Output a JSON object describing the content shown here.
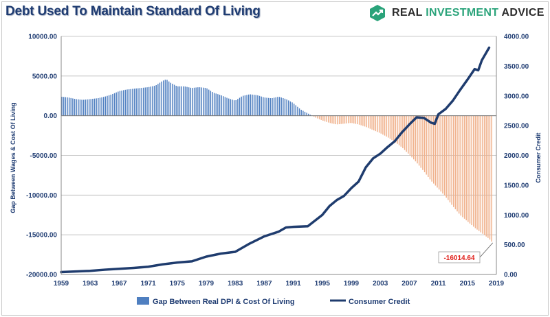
{
  "header": {
    "title": "Debt Used To Maintain Standard Of Living",
    "brand": {
      "word1": "REAL ",
      "word2": "INVESTMENT",
      "word3": " ADVICE",
      "icon": "trend-arrow-icon",
      "color": "#2aa37a"
    }
  },
  "chart_data": {
    "type": "bar+line",
    "title": "Debt Used To Maintain Standard Of Living",
    "x_ticks": [
      "1959",
      "1963",
      "1967",
      "1971",
      "1975",
      "1979",
      "1983",
      "1987",
      "1991",
      "1995",
      "1999",
      "2003",
      "2007",
      "2011",
      "2015",
      "2019"
    ],
    "x_range": [
      1959,
      2019
    ],
    "y_left": {
      "label": "Gap Between Wages & Cost Of Living",
      "ticks": [
        "10000.00",
        "5000.00",
        "0.00",
        "-5000.00",
        "-10000.00",
        "-15000.00",
        "-20000.00"
      ],
      "range": [
        -20000,
        10000
      ]
    },
    "y_right": {
      "label": "Consumer Credit",
      "ticks": [
        "4000.00",
        "3500.00",
        "3000.00",
        "2500.00",
        "2000.00",
        "1500.00",
        "1000.00",
        "500.00",
        "0.00"
      ],
      "range": [
        0,
        4000
      ]
    },
    "grid": "horizontal",
    "legend_position": "bottom",
    "series": [
      {
        "name": "Gap Between Real DPI & Cost Of Living",
        "type": "bar",
        "axis": "left",
        "color_positive": "#4f7fc0",
        "color_negative": "#f0b08a",
        "points": [
          [
            1959.0,
            2400
          ],
          [
            1960.0,
            2300
          ],
          [
            1961.0,
            2100
          ],
          [
            1962.0,
            2000
          ],
          [
            1963.0,
            2100
          ],
          [
            1964.0,
            2200
          ],
          [
            1965.0,
            2400
          ],
          [
            1966.0,
            2700
          ],
          [
            1967.0,
            3100
          ],
          [
            1968.0,
            3300
          ],
          [
            1969.0,
            3400
          ],
          [
            1970.0,
            3500
          ],
          [
            1971.0,
            3600
          ],
          [
            1972.0,
            3800
          ],
          [
            1973.0,
            4400
          ],
          [
            1973.5,
            4600
          ],
          [
            1974.0,
            4200
          ],
          [
            1975.0,
            3700
          ],
          [
            1976.0,
            3700
          ],
          [
            1977.0,
            3500
          ],
          [
            1978.0,
            3600
          ],
          [
            1979.0,
            3500
          ],
          [
            1980.0,
            2900
          ],
          [
            1981.0,
            2600
          ],
          [
            1982.0,
            2200
          ],
          [
            1983.0,
            1900
          ],
          [
            1984.0,
            2500
          ],
          [
            1985.0,
            2700
          ],
          [
            1986.0,
            2600
          ],
          [
            1987.0,
            2300
          ],
          [
            1988.0,
            2200
          ],
          [
            1989.0,
            2400
          ],
          [
            1990.0,
            2100
          ],
          [
            1991.0,
            1600
          ],
          [
            1992.0,
            800
          ],
          [
            1993.0,
            300
          ],
          [
            1994.0,
            -200
          ],
          [
            1995.0,
            -600
          ],
          [
            1996.0,
            -900
          ],
          [
            1997.0,
            -1100
          ],
          [
            1998.0,
            -1000
          ],
          [
            1999.0,
            -900
          ],
          [
            2000.0,
            -1100
          ],
          [
            2001.0,
            -1400
          ],
          [
            2002.0,
            -1800
          ],
          [
            2003.0,
            -2200
          ],
          [
            2004.0,
            -2700
          ],
          [
            2005.0,
            -3300
          ],
          [
            2006.0,
            -4000
          ],
          [
            2007.0,
            -4900
          ],
          [
            2008.0,
            -5900
          ],
          [
            2009.0,
            -7000
          ],
          [
            2010.0,
            -8200
          ],
          [
            2011.0,
            -9200
          ],
          [
            2012.0,
            -10200
          ],
          [
            2013.0,
            -11400
          ],
          [
            2014.0,
            -12500
          ],
          [
            2015.0,
            -13300
          ],
          [
            2016.0,
            -14100
          ],
          [
            2017.0,
            -14800
          ],
          [
            2018.0,
            -15500
          ],
          [
            2018.5,
            -16014.64
          ]
        ]
      },
      {
        "name": "Consumer Credit",
        "type": "line",
        "axis": "right",
        "color": "#1f3c6e",
        "points": [
          [
            1959.0,
            40
          ],
          [
            1961.0,
            50
          ],
          [
            1963.0,
            60
          ],
          [
            1965.0,
            80
          ],
          [
            1967.0,
            95
          ],
          [
            1969.0,
            110
          ],
          [
            1971.0,
            130
          ],
          [
            1973.0,
            170
          ],
          [
            1975.0,
            200
          ],
          [
            1977.0,
            220
          ],
          [
            1979.0,
            300
          ],
          [
            1981.0,
            350
          ],
          [
            1983.0,
            380
          ],
          [
            1985.0,
            520
          ],
          [
            1987.0,
            640
          ],
          [
            1989.0,
            720
          ],
          [
            1990.0,
            790
          ],
          [
            1991.0,
            800
          ],
          [
            1993.0,
            810
          ],
          [
            1995.0,
            1000
          ],
          [
            1996.0,
            1150
          ],
          [
            1997.0,
            1250
          ],
          [
            1998.0,
            1320
          ],
          [
            1999.0,
            1450
          ],
          [
            2000.0,
            1560
          ],
          [
            2001.0,
            1800
          ],
          [
            2002.0,
            1950
          ],
          [
            2003.0,
            2030
          ],
          [
            2004.0,
            2140
          ],
          [
            2005.0,
            2240
          ],
          [
            2006.0,
            2390
          ],
          [
            2007.0,
            2520
          ],
          [
            2008.0,
            2640
          ],
          [
            2009.0,
            2630
          ],
          [
            2010.0,
            2550
          ],
          [
            2010.5,
            2530
          ],
          [
            2011.0,
            2690
          ],
          [
            2012.0,
            2780
          ],
          [
            2013.0,
            2920
          ],
          [
            2014.0,
            3100
          ],
          [
            2015.0,
            3270
          ],
          [
            2016.0,
            3450
          ],
          [
            2016.5,
            3430
          ],
          [
            2017.0,
            3600
          ],
          [
            2018.0,
            3810
          ]
        ]
      }
    ],
    "annotations": [
      {
        "text": "-16014.64",
        "x": 2018.5,
        "y": -16014.64,
        "color": "#e0201b"
      }
    ]
  }
}
